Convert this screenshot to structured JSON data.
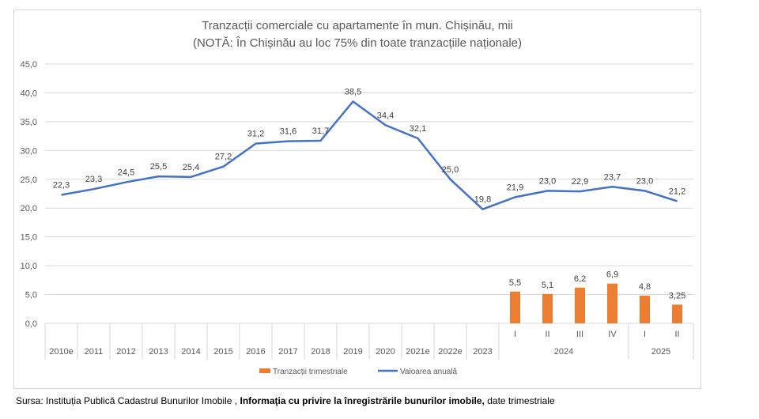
{
  "chart_data": {
    "type": "bar+line",
    "title": "Tranzacții comerciale cu apartamente în mun. Chișinău, mii",
    "subtitle": "(NOTĂ: În Chișinău au loc 75% din toate tranzacțiile naționale)",
    "ylim": [
      0,
      45
    ],
    "yticks": [
      "0,0",
      "5,0",
      "10,0",
      "15,0",
      "20,0",
      "25,0",
      "30,0",
      "35,0",
      "40,0",
      "45,0"
    ],
    "grid": true,
    "legend_placement": "bottom",
    "categories": [
      "2010e",
      "2011",
      "2012",
      "2013",
      "2014",
      "2015",
      "2016",
      "2017",
      "2018",
      "2019",
      "2020",
      "2021e",
      "2022e",
      "2023",
      "I",
      "II",
      "III",
      "IV",
      "I",
      "II"
    ],
    "group_labels": [
      {
        "label": "2024",
        "span": 4
      },
      {
        "label": "2025",
        "span": 2
      }
    ],
    "series": [
      {
        "name": "Tranzacții trimestriale",
        "type": "bar",
        "color": "#ed7d31",
        "values": [
          null,
          null,
          null,
          null,
          null,
          null,
          null,
          null,
          null,
          null,
          null,
          null,
          null,
          null,
          5.5,
          5.1,
          6.2,
          6.9,
          4.8,
          3.25
        ],
        "labels": [
          "",
          "",
          "",
          "",
          "",
          "",
          "",
          "",
          "",
          "",
          "",
          "",
          "",
          "",
          "5,5",
          "5,1",
          "6,2",
          "6,9",
          "4,8",
          "3,25"
        ]
      },
      {
        "name": "Valoarea anuală",
        "type": "line",
        "color": "#4472c4",
        "values": [
          22.3,
          23.3,
          24.5,
          25.5,
          25.4,
          27.2,
          31.2,
          31.6,
          31.7,
          38.5,
          34.4,
          32.1,
          25.0,
          19.8,
          21.9,
          23.0,
          22.9,
          23.7,
          23.0,
          21.2
        ],
        "labels": [
          "22,3",
          "23,3",
          "24,5",
          "25,5",
          "25,4",
          "27,2",
          "31,2",
          "31,6",
          "31,7",
          "38,5",
          "34,4",
          "32,1",
          "25,0",
          "19,8",
          "21,9",
          "23,0",
          "22,9",
          "23,7",
          "23,0",
          "21,2"
        ]
      }
    ]
  },
  "footer": {
    "source_prefix": "Sursa: Instituția Publică Cadastrul Bunurilor Imobile ,",
    "source_bold": "Informaţia cu privire la înregistrările bunurilor imobile,",
    "source_suffix": "date trimestriale"
  }
}
